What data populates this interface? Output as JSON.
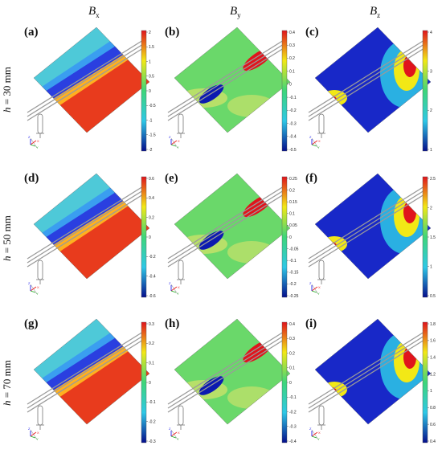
{
  "columns": [
    {
      "base": "B",
      "sub": "x"
    },
    {
      "base": "B",
      "sub": "y"
    },
    {
      "base": "B",
      "sub": "z"
    }
  ],
  "rows": [
    {
      "var": "h",
      "label": " = 30 mm"
    },
    {
      "var": "h",
      "label": " = 50 mm"
    },
    {
      "var": "h",
      "label": " = 70 mm"
    }
  ],
  "panels": [
    {
      "label": "(a)",
      "component": "x",
      "ticks": [
        "2",
        "1.5",
        "1",
        "0.5",
        "0",
        "-0.5",
        "-1",
        "-1.5",
        "-2"
      ]
    },
    {
      "label": "(b)",
      "component": "y",
      "ticks": [
        "0.4",
        "0.3",
        "0.2",
        "0.1",
        "0",
        "-0.1",
        "-0.2",
        "-0.3",
        "-0.4",
        "-0.5"
      ]
    },
    {
      "label": "(c)",
      "component": "z",
      "ticks": [
        "4",
        "3",
        "2",
        "1"
      ]
    },
    {
      "label": "(d)",
      "component": "x",
      "ticks": [
        "0.6",
        "0.4",
        "0.2",
        "0",
        "-0.2",
        "-0.4",
        "-0.6"
      ]
    },
    {
      "label": "(e)",
      "component": "y",
      "ticks": [
        "0.25",
        "0.2",
        "0.15",
        "0.1",
        "0.05",
        "0",
        "-0.05",
        "-0.1",
        "-0.15",
        "-0.2",
        "-0.25"
      ]
    },
    {
      "label": "(f)",
      "component": "z",
      "ticks": [
        "2.5",
        "2",
        "1.5",
        "1",
        "0.5"
      ]
    },
    {
      "label": "(g)",
      "component": "x",
      "ticks": [
        "0.3",
        "0.2",
        "0.1",
        "0",
        "-0.1",
        "-0.2",
        "-0.3"
      ]
    },
    {
      "label": "(h)",
      "component": "y",
      "ticks": [
        "0.4",
        "0.3",
        "0.2",
        "0.1",
        "0",
        "-0.1",
        "-0.2",
        "-0.3",
        "-0.4"
      ]
    },
    {
      "label": "(i)",
      "component": "z",
      "ticks": [
        "1.8",
        "1.6",
        "1.4",
        "1.2",
        "1",
        "0.8",
        "0.6",
        "0.4"
      ]
    }
  ],
  "axis_triad": {
    "x": "X",
    "y": "Y",
    "z": "Z"
  },
  "colors": {
    "red": "#e0141c",
    "yellow": "#f2e816",
    "green": "#3ed67a",
    "cyan": "#2ec8e6",
    "blue": "#0c1ab0",
    "darkblue": "#050f8c",
    "conductor": "#9a9a9a"
  }
}
